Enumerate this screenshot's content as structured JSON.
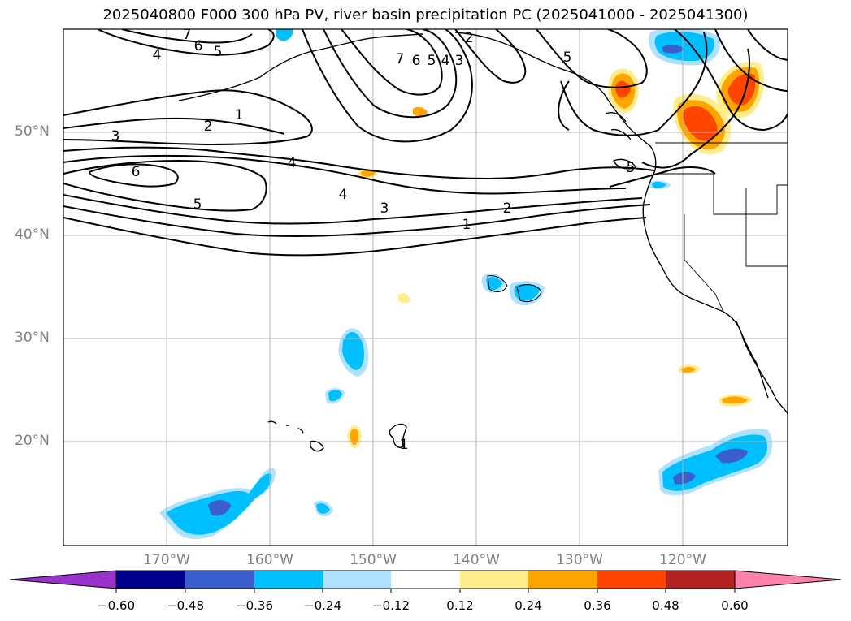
{
  "title": "2025040800 F000 300 hPa PV, river basin precipitation PC (2025041000 - 2025041300)",
  "axes": {
    "lat_labels": [
      "50°N",
      "40°N",
      "30°N",
      "20°N"
    ],
    "lon_labels": [
      "170°W",
      "160°W",
      "150°W",
      "140°W",
      "130°W",
      "120°W"
    ]
  },
  "contour_labels": [
    "7",
    "6",
    "5",
    "4",
    "1",
    "2",
    "3",
    "6",
    "5",
    "4",
    "3",
    "2",
    "1",
    "7",
    "6",
    "5",
    "4",
    "3",
    "2",
    "4",
    "5",
    "5",
    "1"
  ],
  "colorbar": {
    "ticks": [
      "−0.60",
      "−0.48",
      "−0.36",
      "−0.24",
      "−0.12",
      "0.12",
      "0.24",
      "0.36",
      "0.48",
      "0.60"
    ],
    "colors": [
      "#9932cc",
      "#00008b",
      "#3a5fcd",
      "#00bfff",
      "#b0e2ff",
      "#ffffff",
      "#ffec8b",
      "#ffa500",
      "#ff4500",
      "#b22222",
      "#ff82ab"
    ]
  }
}
